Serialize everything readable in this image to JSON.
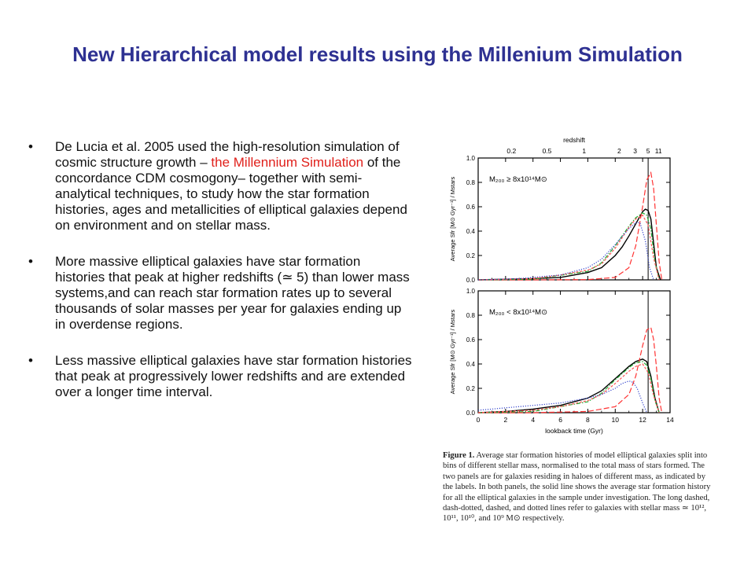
{
  "slide": {
    "title": "New Hierarchical model results using the  Millenium Simulation",
    "bullet_glyph": "•",
    "bullets": [
      {
        "before": "De Lucia et al. 2005 used the high-resolution simulation of cosmic structure growth – ",
        "highlight": "the Millennium Simulation",
        "after": " of the concordance CDM cosmogony– together with semi-analytical techniques, to study how the star formation histories, ages and metallicities of elliptical galaxies depend on environment and on stellar mass."
      },
      {
        "text": "More massive elliptical galaxies have star formation histories that peak at higher redshifts (≃ 5) than lower mass systems,and can reach star formation rates up to several thousands of solar masses per year for galaxies ending up in overdense regions."
      },
      {
        "text": "Less massive elliptical galaxies have star formation histories that peak at progressively lower redshifts and are extended over a longer time interval."
      }
    ],
    "highlight_color": "#e0201b",
    "title_color": "#2e3192"
  },
  "figure": {
    "caption_label": "Figure 1.",
    "caption_text": "Average star formation histories of model elliptical galaxies split into bins of different stellar mass, normalised to the total mass of stars formed. The two panels are for galaxies residing in haloes of different mass, as indicated by the labels. In both panels, the solid line shows the average star formation history for all the elliptical galaxies in the sample under investigation. The long dashed, dash-dotted, dashed, and dotted lines refer to galaxies with stellar mass ≃ 10¹², 10¹¹, 10¹⁰, and 10⁹ M⊙ respectively."
  },
  "chart_data": [
    {
      "type": "line",
      "panel_label": "M₂₀₀ ≥ 8x10¹⁴M⊙",
      "top_axis_label": "redshift",
      "top_ticks": [
        {
          "label": "0.2",
          "t": 2.43
        },
        {
          "label": "0.5",
          "t": 5.02
        },
        {
          "label": "1",
          "t": 7.73
        },
        {
          "label": "2",
          "t": 10.29
        },
        {
          "label": "3",
          "t": 11.45
        },
        {
          "label": "5",
          "t": 12.4
        },
        {
          "label": "11",
          "t": 13.15
        }
      ],
      "xlabel": "lookback time (Gyr)",
      "ylabel": "Average Sfr [M⊙ Gyr⁻¹] / Mstars",
      "xlim": [
        0,
        14
      ],
      "ylim": [
        0,
        1.0
      ],
      "xticks": [
        "0",
        "2",
        "4",
        "6",
        "8",
        "10",
        "12",
        "14"
      ],
      "yticks": [
        "0.0",
        "0.2",
        "0.4",
        "0.6",
        "0.8",
        "1.0"
      ],
      "vline_x": 12.4,
      "series": [
        {
          "style": "solid",
          "color": "#000000",
          "x": [
            0,
            2,
            4,
            6,
            8,
            9,
            10,
            10.5,
            11,
            11.5,
            12,
            12.2,
            12.4,
            12.6,
            12.8,
            13,
            13.3
          ],
          "y": [
            0,
            0.005,
            0.01,
            0.02,
            0.06,
            0.1,
            0.2,
            0.27,
            0.36,
            0.46,
            0.56,
            0.58,
            0.57,
            0.5,
            0.3,
            0.1,
            0.0
          ]
        },
        {
          "style": "long-dashed",
          "color": "#ff3333",
          "x": [
            0,
            4,
            8,
            10,
            11,
            11.5,
            12,
            12.3,
            12.6,
            12.8,
            13,
            13.2,
            13.4
          ],
          "y": [
            0,
            0,
            0.002,
            0.02,
            0.1,
            0.28,
            0.6,
            0.82,
            0.88,
            0.75,
            0.45,
            0.15,
            0.0
          ]
        },
        {
          "style": "dash-dotted",
          "color": "#22aa33",
          "x": [
            0,
            4,
            8,
            9,
            10,
            11,
            11.5,
            12,
            12.3,
            12.6,
            12.9,
            13.2
          ],
          "y": [
            0,
            0.005,
            0.07,
            0.14,
            0.28,
            0.44,
            0.51,
            0.55,
            0.53,
            0.42,
            0.15,
            0.0
          ]
        },
        {
          "style": "dashed",
          "color": "#ff5555",
          "x": [
            0,
            4,
            6,
            8,
            9,
            10,
            11,
            11.5,
            12,
            12.4,
            12.8,
            13.2
          ],
          "y": [
            0,
            0.01,
            0.04,
            0.08,
            0.13,
            0.26,
            0.43,
            0.5,
            0.53,
            0.45,
            0.18,
            0.0
          ]
        },
        {
          "style": "dotted",
          "color": "#3344cc",
          "x": [
            0,
            3,
            6,
            8,
            9,
            10,
            11,
            11.5,
            11.8,
            12.2,
            12.5,
            12.8
          ],
          "y": [
            0,
            0.01,
            0.04,
            0.1,
            0.17,
            0.29,
            0.42,
            0.47,
            0.47,
            0.32,
            0.1,
            0.0
          ]
        }
      ]
    },
    {
      "type": "line",
      "panel_label": "M₂₀₀ < 8x10¹⁴M⊙",
      "xlabel": "lookback time (Gyr)",
      "ylabel": "Average Sfr [M⊙ Gyr⁻¹] / Mstars",
      "xlim": [
        0,
        14
      ],
      "ylim": [
        0,
        1.0
      ],
      "xticks": [
        "0",
        "2",
        "4",
        "6",
        "8",
        "10",
        "12",
        "14"
      ],
      "yticks": [
        "0.0",
        "0.2",
        "0.4",
        "0.6",
        "0.8",
        "1.0"
      ],
      "vline_x": 12.4,
      "series": [
        {
          "style": "solid",
          "color": "#000000",
          "x": [
            0,
            2,
            4,
            6,
            8,
            9,
            10,
            10.5,
            11,
            11.5,
            12,
            12.3,
            12.6,
            12.9,
            13.2
          ],
          "y": [
            0,
            0.01,
            0.03,
            0.06,
            0.12,
            0.18,
            0.28,
            0.33,
            0.38,
            0.42,
            0.44,
            0.42,
            0.3,
            0.12,
            0.0
          ]
        },
        {
          "style": "long-dashed",
          "color": "#ff3333",
          "x": [
            0,
            4,
            8,
            10,
            11,
            11.5,
            12,
            12.3,
            12.6,
            12.8,
            13,
            13.2,
            13.4
          ],
          "y": [
            0,
            0,
            0.01,
            0.05,
            0.15,
            0.3,
            0.55,
            0.68,
            0.7,
            0.6,
            0.38,
            0.12,
            0.0
          ]
        },
        {
          "style": "dash-dotted",
          "color": "#22aa33",
          "x": [
            0,
            4,
            8,
            9,
            10,
            11,
            11.5,
            12,
            12.3,
            12.6,
            12.9,
            13.2
          ],
          "y": [
            0,
            0.01,
            0.09,
            0.16,
            0.27,
            0.37,
            0.41,
            0.42,
            0.39,
            0.28,
            0.1,
            0.0
          ]
        },
        {
          "style": "dashed",
          "color": "#ff5555",
          "x": [
            0,
            4,
            6,
            8,
            9,
            10,
            11,
            11.5,
            12,
            12.4,
            12.8,
            13.2
          ],
          "y": [
            0,
            0.02,
            0.05,
            0.1,
            0.15,
            0.24,
            0.34,
            0.38,
            0.4,
            0.33,
            0.14,
            0.0
          ]
        },
        {
          "style": "dotted",
          "color": "#3344cc",
          "x": [
            0,
            2,
            4,
            6,
            8,
            9,
            10,
            10.5,
            11,
            11.3,
            11.6,
            12,
            12.3
          ],
          "y": [
            0.02,
            0.04,
            0.06,
            0.08,
            0.12,
            0.15,
            0.2,
            0.24,
            0.26,
            0.25,
            0.2,
            0.08,
            0.0
          ]
        }
      ]
    }
  ]
}
